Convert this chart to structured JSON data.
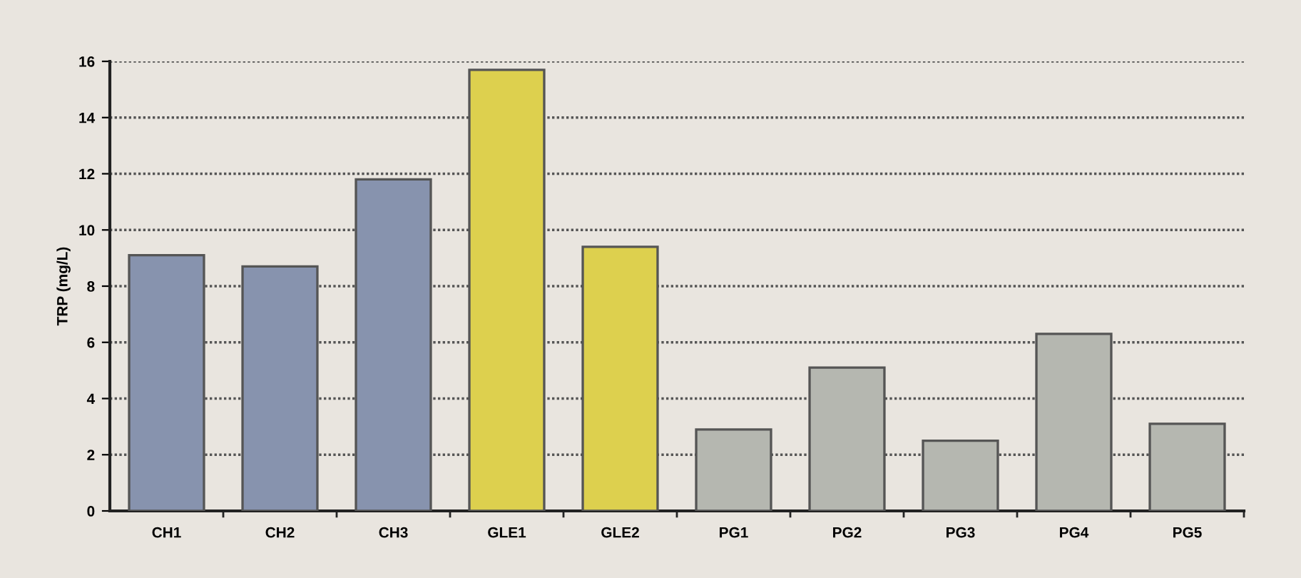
{
  "chart_data": {
    "type": "bar",
    "ylabel": "TRP (mg/L)",
    "categories": [
      "CH1",
      "CH2",
      "CH3",
      "GLE1",
      "GLE2",
      "PG1",
      "PG2",
      "PG3",
      "PG4",
      "PG5"
    ],
    "values": [
      9.1,
      8.7,
      11.8,
      15.7,
      9.4,
      2.9,
      5.1,
      2.5,
      6.3,
      3.1
    ],
    "colors": [
      "#8793ae",
      "#8793ae",
      "#8793ae",
      "#ddd04e",
      "#ddd04e",
      "#b5b7b0",
      "#b5b7b0",
      "#b5b7b0",
      "#b5b7b0",
      "#b5b7b0"
    ],
    "ylim": [
      0,
      16
    ],
    "yticks": [
      0,
      2,
      4,
      6,
      8,
      10,
      12,
      14,
      16
    ],
    "grid": "y"
  }
}
